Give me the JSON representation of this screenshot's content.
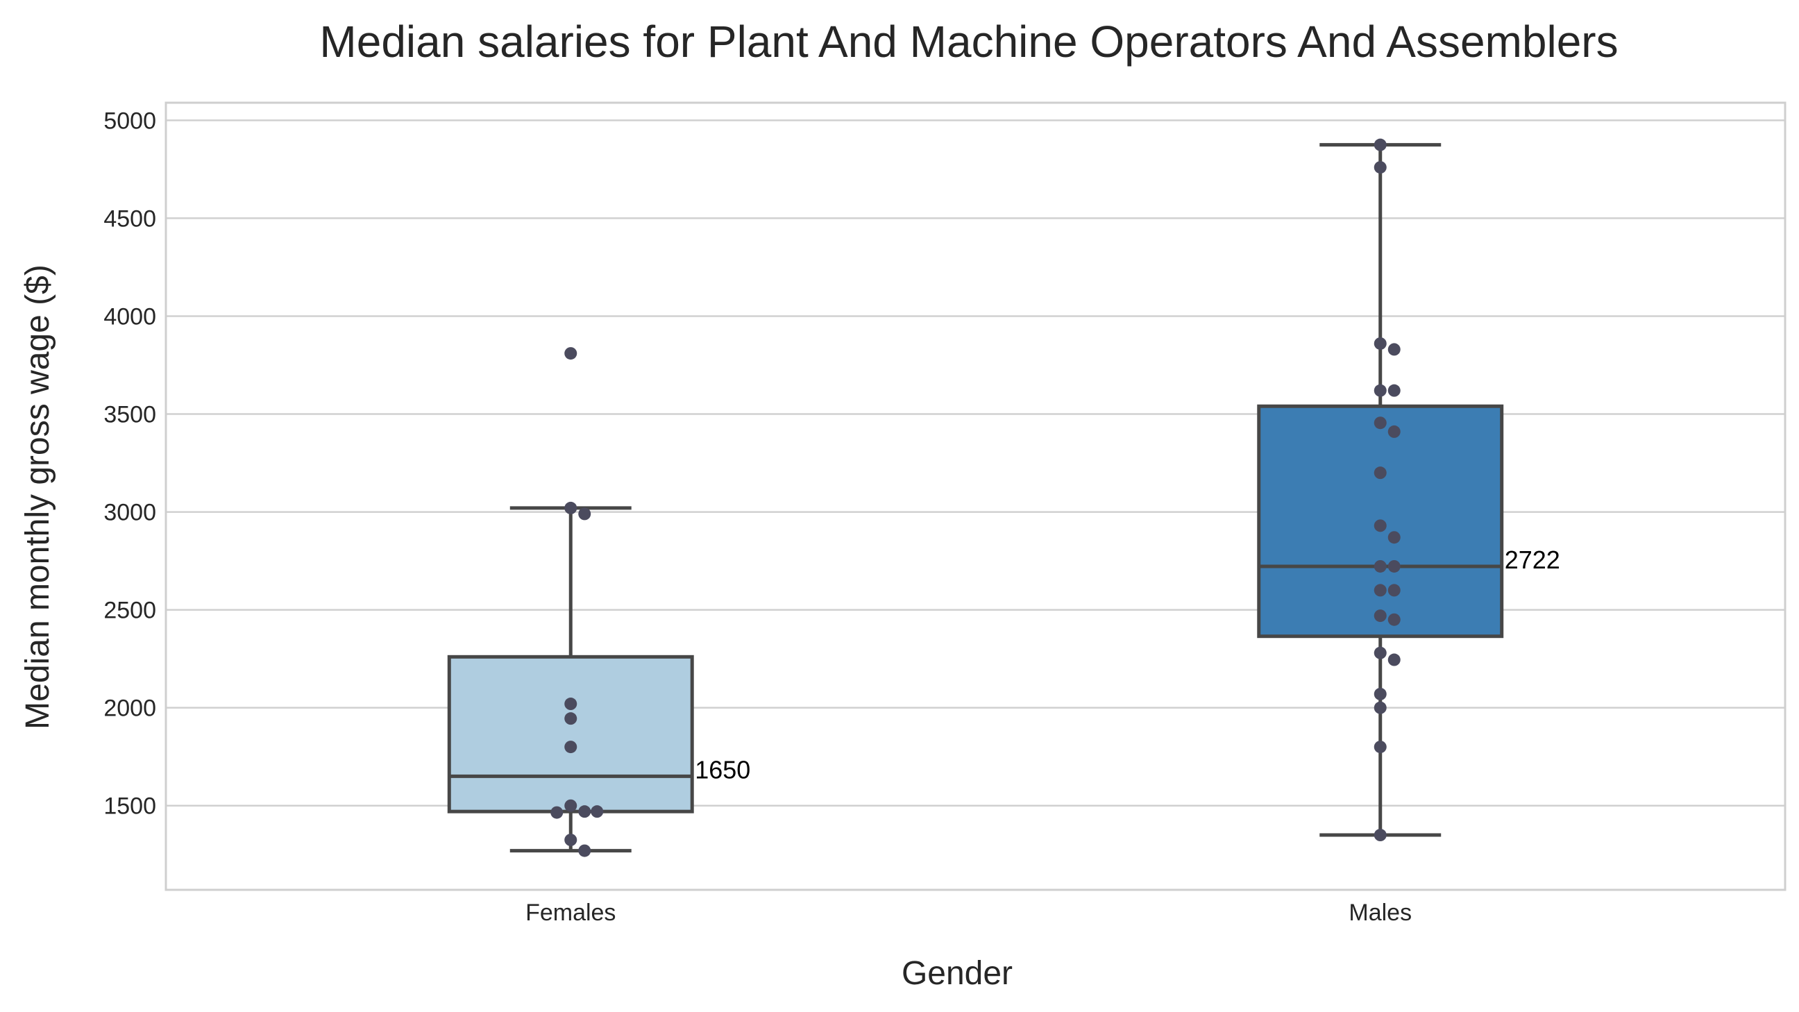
{
  "chart_data": {
    "type": "box",
    "title": "Median salaries for Plant And Machine Operators And Assemblers",
    "xlabel": "Gender",
    "ylabel": "Median monthly gross wage ($)",
    "categories": [
      "Females",
      "Males"
    ],
    "ylim": [
      1070,
      5090
    ],
    "yticks": [
      1500,
      2000,
      2500,
      3000,
      3500,
      4000,
      4500,
      5000
    ],
    "grid": true,
    "colors": {
      "Females": "#afcde0",
      "Males": "#3c7db3",
      "points": "#4b4b5e",
      "box_edge": "#474747",
      "grid": "#d0d0d0",
      "text": "#262626"
    },
    "boxes": [
      {
        "name": "Females",
        "whisker_low": 1270,
        "q1": 1470,
        "median": 1650,
        "q3": 2260,
        "whisker_high": 3020,
        "median_label": "1650",
        "points": [
          3810,
          3020,
          2990,
          2020,
          1945,
          1800,
          1500,
          1470,
          1465,
          1470,
          1325,
          1270
        ]
      },
      {
        "name": "Males",
        "whisker_low": 1350,
        "q1": 2365,
        "median": 2722,
        "q3": 3540,
        "whisker_high": 4875,
        "median_label": "2722",
        "points": [
          4875,
          4760,
          3860,
          3830,
          3620,
          3620,
          3455,
          3410,
          3200,
          2930,
          2870,
          2722,
          2722,
          2600,
          2600,
          2470,
          2450,
          2280,
          2245,
          2070,
          2000,
          1800,
          1350
        ]
      }
    ]
  }
}
